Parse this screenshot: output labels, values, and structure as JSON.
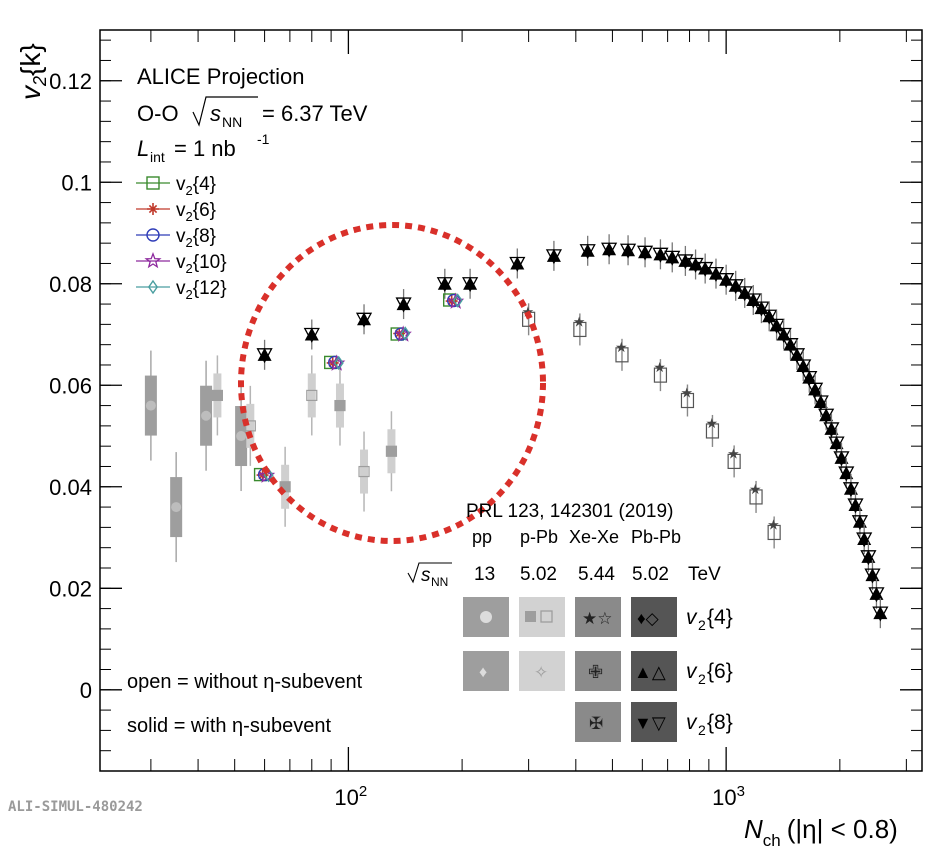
{
  "chart_data": {
    "type": "scatter",
    "title": "ALICE Projection",
    "system_label": "O-O",
    "energy_label": "= 6.37 TeV",
    "sqrt_label": "s",
    "sqrt_sub": "NN",
    "lumi_label": "L",
    "lumi_sub": "int",
    "lumi_value": "= 1 nb",
    "lumi_sup": "-1",
    "xlabel": "N",
    "xlabel_sub": "ch",
    "xlabel_rest": "(|η| < 0.8)",
    "ylabel": "v",
    "ylabel_sub": "2",
    "ylabel_rest": "{k}",
    "xscale": "log",
    "xlim": [
      22,
      3300
    ],
    "ylim": [
      -0.016,
      0.13
    ],
    "x_ticks": [
      {
        "value": 100,
        "base": "10",
        "exp": "2"
      },
      {
        "value": 1000,
        "base": "10",
        "exp": "3"
      }
    ],
    "y_ticks": [
      {
        "value": 0,
        "label": "0"
      },
      {
        "value": 0.02,
        "label": "0.02"
      },
      {
        "value": 0.04,
        "label": "0.04"
      },
      {
        "value": 0.06,
        "label": "0.06"
      },
      {
        "value": 0.08,
        "label": "0.08"
      },
      {
        "value": 0.1,
        "label": "0.1"
      },
      {
        "value": 0.12,
        "label": "0.12"
      }
    ],
    "legend": [
      {
        "base": "v",
        "sub": "2",
        "rest": "{4}",
        "color": "#3a8a2e",
        "marker": "square"
      },
      {
        "base": "v",
        "sub": "2",
        "rest": "{6}",
        "color": "#c0392b",
        "marker": "star4"
      },
      {
        "base": "v",
        "sub": "2",
        "rest": "{8}",
        "color": "#2e3cb8",
        "marker": "circle"
      },
      {
        "base": "v",
        "sub": "2",
        "rest": "{10}",
        "color": "#8e2a9e",
        "marker": "star"
      },
      {
        "base": "v",
        "sub": "2",
        "rest": "{12}",
        "color": "#4a9ea0",
        "marker": "diamond"
      }
    ],
    "oo_projection": {
      "x": [
        60,
        92,
        138,
        190
      ],
      "v2_4": [
        0.0424,
        0.0645,
        0.0701,
        0.0768
      ],
      "v2_6": [
        0.0423,
        0.0644,
        0.0702,
        0.0766
      ],
      "v2_8": [
        0.0424,
        0.0645,
        0.0701,
        0.0767
      ],
      "v2_10": [
        0.0422,
        0.0643,
        0.07,
        0.0765
      ],
      "v2_12": [
        0.0423,
        0.0644,
        0.0702,
        0.0767
      ]
    },
    "pbpb": {
      "x": [
        60,
        80,
        110,
        140,
        180,
        210,
        280,
        350,
        430,
        490,
        550,
        610,
        670,
        720,
        780,
        830,
        880,
        940,
        1000,
        1060,
        1120,
        1180,
        1240,
        1300,
        1360,
        1420,
        1480,
        1540,
        1600,
        1660,
        1720,
        1780,
        1840,
        1900,
        1960,
        2020,
        2080,
        2140,
        2200,
        2260,
        2320,
        2380,
        2440,
        2500,
        2560
      ],
      "v2": [
        0.066,
        0.07,
        0.073,
        0.076,
        0.08,
        0.08,
        0.084,
        0.0855,
        0.0865,
        0.0868,
        0.0866,
        0.0862,
        0.0858,
        0.0852,
        0.0845,
        0.0838,
        0.083,
        0.082,
        0.0808,
        0.0796,
        0.0782,
        0.0768,
        0.0752,
        0.0736,
        0.0718,
        0.07,
        0.068,
        0.066,
        0.0638,
        0.0615,
        0.0592,
        0.0567,
        0.0541,
        0.0514,
        0.0486,
        0.0457,
        0.0427,
        0.0396,
        0.0364,
        0.0331,
        0.0297,
        0.0262,
        0.0226,
        0.0189,
        0.0151
      ]
    },
    "xexe": {
      "x": [
        300,
        410,
        530,
        670,
        790,
        920,
        1050,
        1200,
        1340
      ],
      "v2": [
        0.073,
        0.071,
        0.066,
        0.062,
        0.057,
        0.051,
        0.045,
        0.038,
        0.031
      ]
    },
    "ppb": {
      "x": [
        45,
        55,
        68,
        80,
        95,
        110,
        130
      ],
      "v2": [
        0.058,
        0.052,
        0.04,
        0.058,
        0.056,
        0.043,
        0.047
      ]
    },
    "pp": {
      "x": [
        30,
        35,
        42,
        52
      ],
      "v2": [
        0.056,
        0.036,
        0.054,
        0.05
      ]
    },
    "annotations": {
      "ref_line1": "PRL 123, 142301 (2019)",
      "systems": [
        "pp",
        "p-Pb",
        "Xe-Xe",
        "Pb-Pb"
      ],
      "sqrt_s": "s",
      "sqrt_sub": "NN",
      "energies": [
        "13",
        "5.02",
        "5.44",
        "5.02",
        "TeV"
      ],
      "row_labels": [
        {
          "base": "v",
          "sub": "2",
          "rest": "{4}"
        },
        {
          "base": "v",
          "sub": "2",
          "rest": "{6}"
        },
        {
          "base": "v",
          "sub": "2",
          "rest": "{8}"
        }
      ],
      "open_note": "open = without η-subevent",
      "solid_note": "solid = with η-subevent"
    },
    "watermark": "ALI-SIMUL-480242"
  }
}
